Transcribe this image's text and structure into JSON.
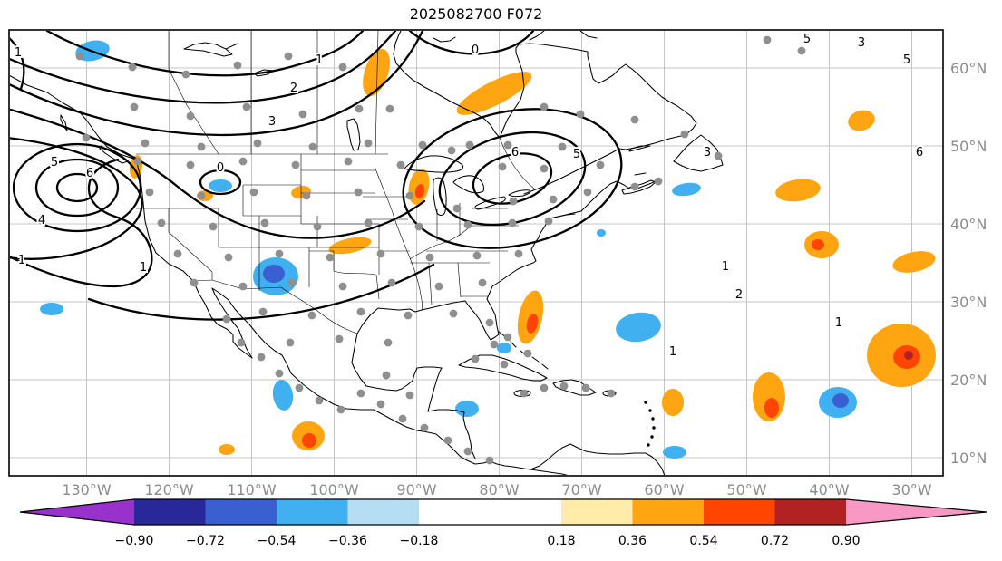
{
  "title": "2025082700 F072",
  "axes": {
    "tick_color": "#8c8c8c",
    "lon_ticks": [
      "130°W",
      "120°W",
      "110°W",
      "100°W",
      "90°W",
      "80°W",
      "70°W",
      "60°W",
      "50°W",
      "40°W",
      "30°W"
    ],
    "lat_ticks": [
      "60°N",
      "50°N",
      "40°N",
      "30°N",
      "20°N",
      "10°N"
    ]
  },
  "colorbar": {
    "tick_labels": [
      "−0.90",
      "−0.72",
      "−0.54",
      "−0.36",
      "−0.18",
      "0.18",
      "0.36",
      "0.54",
      "0.72",
      "0.90"
    ],
    "boundaries": [
      -0.9,
      -0.72,
      -0.54,
      -0.36,
      -0.18,
      0.18,
      0.36,
      0.54,
      0.72,
      0.9
    ],
    "segment_colors": [
      "#28289b",
      "#3a5fd1",
      "#41b0f0",
      "#b5def5",
      "#ffffff",
      "#ffeca8",
      "#ffa512",
      "#ff4500",
      "#b22222"
    ],
    "extend_left_color": "#9932cc",
    "extend_right_color": "#f799c4"
  },
  "chart_data": {
    "type": "heatmap",
    "subtype": "filled-contour-anomaly-map-with-stations",
    "title": "2025082700 F072",
    "x_ticks": [
      "130°W",
      "120°W",
      "110°W",
      "100°W",
      "90°W",
      "80°W",
      "70°W",
      "60°W",
      "50°W",
      "40°W",
      "30°W"
    ],
    "y_ticks": [
      "60°N",
      "50°N",
      "40°N",
      "30°N",
      "20°N",
      "10°N"
    ],
    "grid": true,
    "legend_position": "bottom-colorbar",
    "colorbar_levels": [
      -0.9,
      -0.72,
      -0.54,
      -0.36,
      -0.18,
      0.18,
      0.36,
      0.54,
      0.72,
      0.9
    ],
    "contour_levels_labeled": [
      0,
      1,
      2,
      3,
      4,
      5,
      6
    ],
    "palette": {
      "orange": "#ffa512",
      "red": "#ff4500",
      "darkred": "#b22222",
      "lightblue": "#41b0f0",
      "royalblue": "#3a5fd1"
    },
    "contour_labels": [
      {
        "v": "1",
        "x": 352,
        "y": 70
      },
      {
        "v": "2",
        "x": 324,
        "y": 101
      },
      {
        "v": "3",
        "x": 300,
        "y": 138
      },
      {
        "v": "0",
        "x": 524,
        "y": 59
      },
      {
        "v": "1",
        "x": 20,
        "y": 62
      },
      {
        "v": "6",
        "x": 99,
        "y": 195
      },
      {
        "v": "5",
        "x": 60,
        "y": 183
      },
      {
        "v": "4",
        "x": 46,
        "y": 247
      },
      {
        "v": "1",
        "x": 24,
        "y": 291
      },
      {
        "v": "1",
        "x": 158,
        "y": 299
      },
      {
        "v": "0",
        "x": 243,
        "y": 189
      },
      {
        "v": "6",
        "x": 568,
        "y": 172
      },
      {
        "v": "5",
        "x": 636,
        "y": 174
      },
      {
        "v": "3",
        "x": 780,
        "y": 172
      },
      {
        "v": "5",
        "x": 890,
        "y": 47
      },
      {
        "v": "3",
        "x": 950,
        "y": 51
      },
      {
        "v": "5",
        "x": 1000,
        "y": 70
      },
      {
        "v": "6",
        "x": 1014,
        "y": 172
      },
      {
        "v": "1",
        "x": 800,
        "y": 298
      },
      {
        "v": "2",
        "x": 815,
        "y": 329
      },
      {
        "v": "1",
        "x": 742,
        "y": 392
      },
      {
        "v": "1",
        "x": 925,
        "y": 360
      }
    ],
    "anomaly_regions": [
      {
        "level": "orange",
        "cx": 415,
        "cy": 80,
        "rx": 13,
        "ry": 27,
        "rot": 18
      },
      {
        "level": "orange",
        "cx": 545,
        "cy": 103,
        "rx": 46,
        "ry": 13,
        "rot": -27
      },
      {
        "level": "orange",
        "cx": 150,
        "cy": 184,
        "rx": 7,
        "ry": 13,
        "rot": 8
      },
      {
        "level": "orange",
        "cx": 226,
        "cy": 216,
        "rx": 9,
        "ry": 6,
        "rot": 0
      },
      {
        "level": "orange",
        "cx": 332,
        "cy": 212,
        "rx": 11,
        "ry": 7,
        "rot": -10
      },
      {
        "level": "orange",
        "cx": 386,
        "cy": 271,
        "rx": 24,
        "ry": 8,
        "rot": -12
      },
      {
        "level": "orange",
        "cx": 462,
        "cy": 206,
        "rx": 11,
        "ry": 20,
        "rot": 12
      },
      {
        "level": "red",
        "cx": 463,
        "cy": 211,
        "rx": 5,
        "ry": 8,
        "rot": 12
      },
      {
        "level": "orange",
        "cx": 950,
        "cy": 133,
        "rx": 15,
        "ry": 11,
        "rot": -15
      },
      {
        "level": "orange",
        "cx": 880,
        "cy": 210,
        "rx": 25,
        "ry": 12,
        "rot": -8
      },
      {
        "level": "orange",
        "cx": 585,
        "cy": 350,
        "rx": 13,
        "ry": 30,
        "rot": 12
      },
      {
        "level": "red",
        "cx": 587,
        "cy": 357,
        "rx": 6,
        "ry": 11,
        "rot": 12
      },
      {
        "level": "orange",
        "cx": 906,
        "cy": 270,
        "rx": 19,
        "ry": 15,
        "rot": 0
      },
      {
        "level": "red",
        "cx": 902,
        "cy": 270,
        "rx": 7,
        "ry": 6,
        "rot": 0
      },
      {
        "level": "orange",
        "cx": 1008,
        "cy": 289,
        "rx": 24,
        "ry": 11,
        "rot": -12
      },
      {
        "level": "orange",
        "cx": 994,
        "cy": 392,
        "rx": 38,
        "ry": 35,
        "rot": 0
      },
      {
        "level": "red",
        "cx": 1000,
        "cy": 394,
        "rx": 15,
        "ry": 13,
        "rot": 0
      },
      {
        "level": "darkred",
        "cx": 1002,
        "cy": 392,
        "rx": 5,
        "ry": 5,
        "rot": 0
      },
      {
        "level": "orange",
        "cx": 848,
        "cy": 438,
        "rx": 18,
        "ry": 27,
        "rot": 0
      },
      {
        "level": "red",
        "cx": 851,
        "cy": 450,
        "rx": 8,
        "ry": 11,
        "rot": 0
      },
      {
        "level": "orange",
        "cx": 742,
        "cy": 444,
        "rx": 12,
        "ry": 15,
        "rot": 0
      },
      {
        "level": "orange",
        "cx": 340,
        "cy": 481,
        "rx": 18,
        "ry": 16,
        "rot": 0
      },
      {
        "level": "red",
        "cx": 341,
        "cy": 486,
        "rx": 8,
        "ry": 8,
        "rot": 0
      },
      {
        "level": "orange",
        "cx": 250,
        "cy": 496,
        "rx": 9,
        "ry": 6,
        "rot": 0
      },
      {
        "level": "lightblue",
        "cx": 102,
        "cy": 56,
        "rx": 19,
        "ry": 11,
        "rot": -12
      },
      {
        "level": "lightblue",
        "cx": 243,
        "cy": 205,
        "rx": 13,
        "ry": 7,
        "rot": 0
      },
      {
        "level": "lightblue",
        "cx": 304,
        "cy": 305,
        "rx": 25,
        "ry": 21,
        "rot": 0
      },
      {
        "level": "royalblue",
        "cx": 302,
        "cy": 302,
        "rx": 12,
        "ry": 10,
        "rot": 0
      },
      {
        "level": "lightblue",
        "cx": 57,
        "cy": 341,
        "rx": 13,
        "ry": 7,
        "rot": 0
      },
      {
        "level": "lightblue",
        "cx": 312,
        "cy": 436,
        "rx": 11,
        "ry": 17,
        "rot": -8
      },
      {
        "level": "lightblue",
        "cx": 515,
        "cy": 451,
        "rx": 13,
        "ry": 9,
        "rot": 0
      },
      {
        "level": "lightblue",
        "cx": 556,
        "cy": 384,
        "rx": 8,
        "ry": 6,
        "rot": 0
      },
      {
        "level": "lightblue",
        "cx": 704,
        "cy": 361,
        "rx": 25,
        "ry": 16,
        "rot": -8
      },
      {
        "level": "lightblue",
        "cx": 924,
        "cy": 444,
        "rx": 21,
        "ry": 17,
        "rot": 0
      },
      {
        "level": "royalblue",
        "cx": 927,
        "cy": 442,
        "rx": 9,
        "ry": 8,
        "rot": 0
      },
      {
        "level": "lightblue",
        "cx": 744,
        "cy": 499,
        "rx": 13,
        "ry": 7,
        "rot": 0
      },
      {
        "level": "lightblue",
        "cx": 757,
        "cy": 209,
        "rx": 16,
        "ry": 7,
        "rot": -8
      },
      {
        "level": "lightblue",
        "cx": 663,
        "cy": 257,
        "rx": 5,
        "ry": 4,
        "rot": 0
      }
    ],
    "stations": [
      [
        88,
        62
      ],
      [
        146,
        74
      ],
      [
        205,
        82
      ],
      [
        262,
        72
      ],
      [
        318,
        62
      ],
      [
        378,
        74
      ],
      [
        430,
        120
      ],
      [
        95,
        152
      ],
      [
        160,
        158
      ],
      [
        222,
        162
      ],
      [
        284,
        158
      ],
      [
        345,
        162
      ],
      [
        406,
        158
      ],
      [
        466,
        160
      ],
      [
        148,
        118
      ],
      [
        210,
        128
      ],
      [
        272,
        118
      ],
      [
        334,
        126
      ],
      [
        396,
        120
      ],
      [
        600,
        118
      ],
      [
        640,
        126
      ],
      [
        700,
        132
      ],
      [
        620,
        162
      ],
      [
        662,
        182
      ],
      [
        755,
        148
      ],
      [
        792,
        172
      ],
      [
        700,
        206
      ],
      [
        726,
        200
      ],
      [
        846,
        44
      ],
      [
        884,
        56
      ],
      [
        518,
        160
      ],
      [
        560,
        160
      ],
      [
        152,
        178
      ],
      [
        210,
        182
      ],
      [
        268,
        178
      ],
      [
        326,
        182
      ],
      [
        384,
        178
      ],
      [
        442,
        182
      ],
      [
        498,
        166
      ],
      [
        554,
        184
      ],
      [
        600,
        186
      ],
      [
        165,
        212
      ],
      [
        222,
        216
      ],
      [
        280,
        212
      ],
      [
        338,
        216
      ],
      [
        395,
        212
      ],
      [
        452,
        216
      ],
      [
        504,
        230
      ],
      [
        566,
        222
      ],
      [
        610,
        220
      ],
      [
        648,
        212
      ],
      [
        178,
        246
      ],
      [
        235,
        250
      ],
      [
        292,
        246
      ],
      [
        350,
        250
      ],
      [
        406,
        246
      ],
      [
        462,
        250
      ],
      [
        516,
        248
      ],
      [
        565,
        246
      ],
      [
        605,
        244
      ],
      [
        196,
        280
      ],
      [
        252,
        284
      ],
      [
        308,
        280
      ],
      [
        364,
        284
      ],
      [
        420,
        280
      ],
      [
        474,
        284
      ],
      [
        526,
        282
      ],
      [
        572,
        280
      ],
      [
        214,
        312
      ],
      [
        268,
        316
      ],
      [
        322,
        312
      ],
      [
        378,
        316
      ],
      [
        432,
        312
      ],
      [
        484,
        316
      ],
      [
        532,
        312
      ],
      [
        290,
        344
      ],
      [
        344,
        348
      ],
      [
        398,
        344
      ],
      [
        450,
        348
      ],
      [
        500,
        346
      ],
      [
        320,
        378
      ],
      [
        374,
        374
      ],
      [
        428,
        378
      ],
      [
        540,
        356
      ],
      [
        545,
        380
      ],
      [
        250,
        352
      ],
      [
        266,
        378
      ],
      [
        288,
        394
      ],
      [
        308,
        412
      ],
      [
        330,
        428
      ],
      [
        352,
        442
      ],
      [
        376,
        452
      ],
      [
        398,
        434
      ],
      [
        420,
        446
      ],
      [
        444,
        462
      ],
      [
        468,
        472
      ],
      [
        494,
        486
      ],
      [
        516,
        498
      ],
      [
        426,
        414
      ],
      [
        452,
        436
      ],
      [
        524,
        396
      ],
      [
        556,
        402
      ],
      [
        578,
        434
      ],
      [
        600,
        428
      ],
      [
        622,
        426
      ],
      [
        646,
        428
      ],
      [
        674,
        434
      ],
      [
        560,
        372
      ],
      [
        582,
        390
      ],
      [
        540,
        508
      ]
    ]
  }
}
